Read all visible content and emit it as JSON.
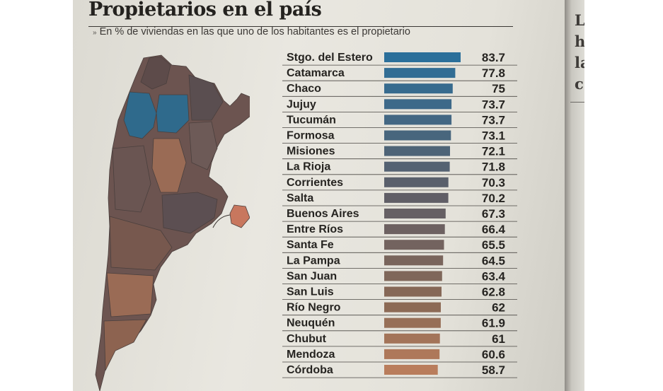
{
  "title": "Propietarios en el país",
  "subtitle": "En % de viviendas en las que uno de los habitantes es el propietario",
  "next_page_letters": [
    "La",
    "h",
    "la",
    "c"
  ],
  "colors": {
    "high": "#2b6f9a",
    "mid": "#605e66",
    "low": "#8c6a55",
    "lowest": "#b97d5c",
    "map_blue": "#2f6a8c",
    "map_brown": "#6c5450",
    "map_tan": "#9a6b55",
    "map_highlight": "#c8775e"
  },
  "chart_data": {
    "type": "bar",
    "orientation": "horizontal",
    "title": "Propietarios en el país",
    "subtitle": "En % de viviendas en las que uno de los habitantes es el propietario",
    "xlim": [
      0,
      83.7
    ],
    "categories": [
      "Stgo. del Estero",
      "Catamarca",
      "Chaco",
      "Jujuy",
      "Tucumán",
      "Formosa",
      "Misiones",
      "La Rioja",
      "Corrientes",
      "Salta",
      "Buenos Aires",
      "Entre Ríos",
      "Santa Fe",
      "La Pampa",
      "San Juan",
      "San Luis",
      "Río Negro",
      "Neuquén",
      "Chubut",
      "Mendoza",
      "Córdoba"
    ],
    "values": [
      83.7,
      77.8,
      75,
      73.7,
      73.7,
      73.1,
      72.1,
      71.8,
      70.3,
      70.2,
      67.3,
      66.4,
      65.5,
      64.5,
      63.4,
      62.8,
      62,
      61.9,
      61,
      60.6,
      58.7
    ],
    "value_labels": [
      "83.7",
      "77.8",
      "75",
      "73.7",
      "73.7",
      "73.1",
      "72.1",
      "71.8",
      "70.3",
      "70.2",
      "67.3",
      "66.4",
      "65.5",
      "64.5",
      "63.4",
      "62.8",
      "62",
      "61.9",
      "61",
      "60.6",
      "58.7"
    ]
  }
}
